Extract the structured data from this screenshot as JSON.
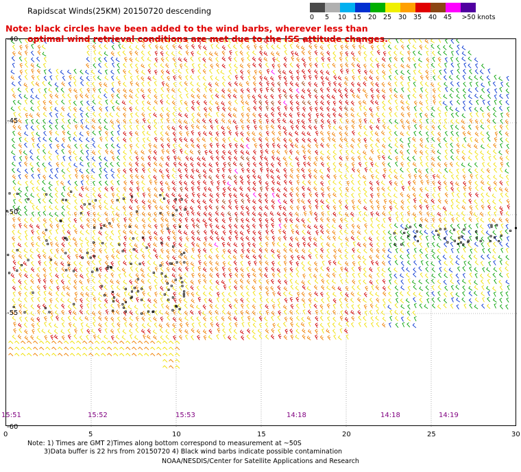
{
  "title": "Rapidscat Winds(25KM) 20150720 descending",
  "note": {
    "line1": "Note: black circles have been added to the wind barbs, wherever less than",
    "line2": "optimal wind retrieval conditions are met due to the ISS attitude changes."
  },
  "colorbar": {
    "labels": [
      "0",
      "5",
      "10",
      "15",
      "20",
      "25",
      "30",
      "35",
      "40",
      "45",
      ">50 knots"
    ],
    "colors": [
      "#4a4a4a",
      "#b0b0b0",
      "#00b0f0",
      "#0030d0",
      "#00b000",
      "#f0f000",
      "#ffa000",
      "#e00000",
      "#8b4513",
      "#ff00ff",
      "#5000a0"
    ]
  },
  "y_axis": {
    "ticks": [
      "-40",
      "-45",
      "-50",
      "-55",
      "-60"
    ]
  },
  "x_axis": {
    "ticks": [
      "0",
      "5",
      "10",
      "15",
      "20",
      "25",
      "30"
    ]
  },
  "times": [
    "15:51",
    "15:52",
    "15:53",
    "14:18",
    "14:18",
    "14:19"
  ],
  "footnote": {
    "line1": "Note: 1) Times are GMT 2)Times along bottom correspond to measurement at ~50S",
    "line2": "3)Data buffer is 22 hrs from 20150720 4) Black wind barbs indicate possible contamination"
  },
  "credit": "NOAA/NESDIS/Center for Satellite Applications and Research"
}
